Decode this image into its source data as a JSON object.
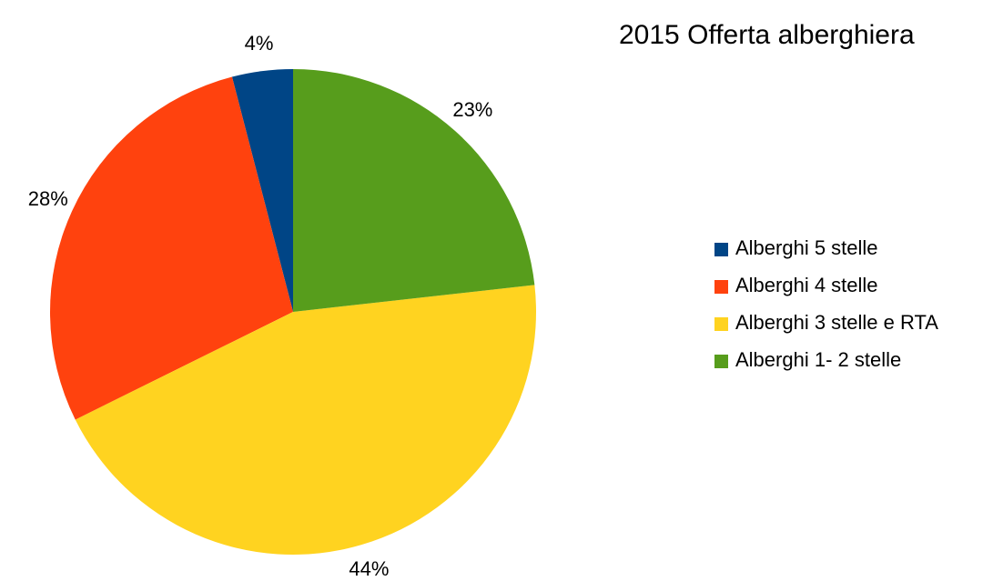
{
  "chart_data": {
    "type": "pie",
    "title": "2015 Offerta alberghiera",
    "categories": [
      "Alberghi 5 stelle",
      "Alberghi 4 stelle",
      "Alberghi 3 stelle e RTA",
      "Alberghi 1- 2 stelle"
    ],
    "values": [
      4,
      28,
      44,
      23
    ],
    "value_labels": [
      "4%",
      "28%",
      "44%",
      "23%"
    ],
    "colors": [
      "#004586",
      "#ff420e",
      "#ffd320",
      "#579d1c"
    ],
    "legend": "right"
  }
}
